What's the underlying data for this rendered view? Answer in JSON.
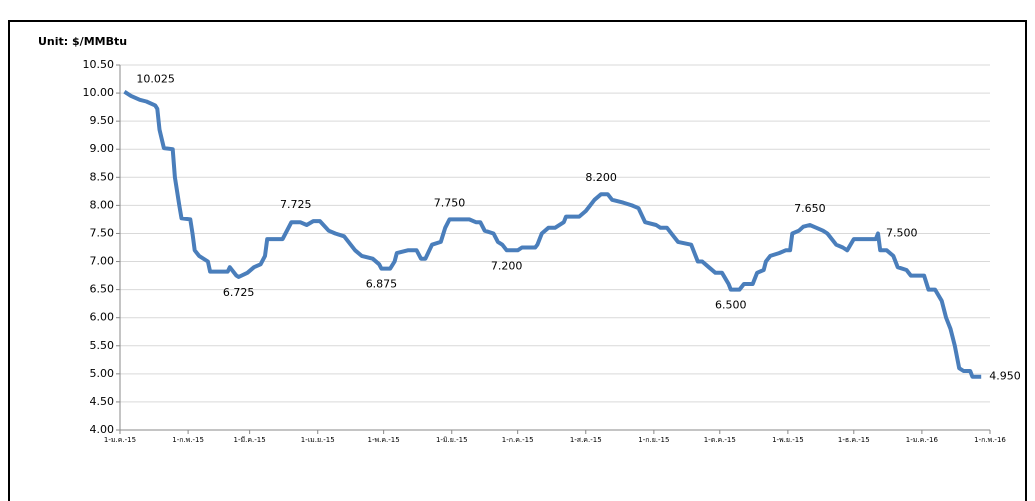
{
  "chart_data": {
    "type": "line",
    "axis_label": "Unit: $/MMBtu",
    "xlim": [
      0,
      396
    ],
    "xticks": [
      {
        "value": 0,
        "label": "1-ม.ค.-15"
      },
      {
        "value": 31,
        "label": "1-ก.พ.-15"
      },
      {
        "value": 59,
        "label": "1-มี.ค.-15"
      },
      {
        "value": 90,
        "label": "1-เม.ย.-15"
      },
      {
        "value": 120,
        "label": "1-พ.ค.-15"
      },
      {
        "value": 151,
        "label": "1-มิ.ย.-15"
      },
      {
        "value": 181,
        "label": "1-ก.ค.-15"
      },
      {
        "value": 212,
        "label": "1-ส.ค.-15"
      },
      {
        "value": 243,
        "label": "1-ก.ย.-15"
      },
      {
        "value": 273,
        "label": "1-ต.ค.-15"
      },
      {
        "value": 304,
        "label": "1-พ.ย.-15"
      },
      {
        "value": 334,
        "label": "1-ธ.ค.-15"
      },
      {
        "value": 365,
        "label": "1-ม.ค.-16"
      },
      {
        "value": 396,
        "label": "1-ก.พ.-16"
      }
    ],
    "ylim": [
      4,
      10.5
    ],
    "yticks": [
      {
        "value": 4,
        "label": "4.00"
      },
      {
        "value": 4.5,
        "label": "4.50"
      },
      {
        "value": 5,
        "label": "5.00"
      },
      {
        "value": 5.5,
        "label": "5.50"
      },
      {
        "value": 6,
        "label": "6.00"
      },
      {
        "value": 6.5,
        "label": "6.50"
      },
      {
        "value": 7,
        "label": "7.00"
      },
      {
        "value": 7.5,
        "label": "7.50"
      },
      {
        "value": 8,
        "label": "8.00"
      },
      {
        "value": 8.5,
        "label": "8.50"
      },
      {
        "value": 9,
        "label": "9.00"
      },
      {
        "value": 9.5,
        "label": "9.50"
      },
      {
        "value": 10,
        "label": "10.00"
      },
      {
        "value": 10.5,
        "label": "10.50"
      }
    ],
    "grid": true,
    "series": [
      {
        "color": "#4a7ebb",
        "x": [
          2,
          5,
          9,
          12,
          16,
          17,
          18,
          20,
          24,
          25,
          27,
          28,
          32,
          33,
          34,
          36,
          40,
          41,
          49,
          50,
          53,
          54,
          58,
          61,
          64,
          66,
          67,
          74,
          78,
          82,
          85,
          88,
          91,
          95,
          98,
          102,
          105,
          107,
          110,
          115,
          118,
          119,
          123,
          125,
          126,
          131,
          135,
          137,
          139,
          142,
          146,
          148,
          150,
          159,
          162,
          164,
          166,
          170,
          172,
          174,
          176,
          181,
          183,
          189,
          190,
          192,
          195,
          198,
          202,
          203,
          209,
          212,
          214,
          216,
          219,
          222,
          224,
          229,
          233,
          236,
          239,
          244,
          246,
          249,
          252,
          254,
          260,
          262,
          263,
          265,
          268,
          271,
          274,
          277,
          278,
          282,
          284,
          288,
          290,
          293,
          294,
          296,
          300,
          303,
          305,
          306,
          309,
          311,
          314,
          317,
          320,
          322,
          326,
          329,
          331,
          334,
          344,
          345,
          346,
          349,
          352,
          354,
          358,
          360,
          366,
          368,
          371,
          374,
          376,
          378,
          380,
          382,
          384,
          387,
          388,
          392
        ],
        "values": [
          10.025,
          9.95,
          9.88,
          9.85,
          9.78,
          9.72,
          9.35,
          9.02,
          9.0,
          8.5,
          8.0,
          7.77,
          7.75,
          7.5,
          7.2,
          7.1,
          7.0,
          6.82,
          6.82,
          6.9,
          6.75,
          6.725,
          6.8,
          6.9,
          6.95,
          7.1,
          7.4,
          7.4,
          7.7,
          7.7,
          7.65,
          7.72,
          7.72,
          7.55,
          7.5,
          7.45,
          7.3,
          7.2,
          7.1,
          7.05,
          6.95,
          6.875,
          6.875,
          7.0,
          7.15,
          7.2,
          7.2,
          7.05,
          7.05,
          7.3,
          7.35,
          7.6,
          7.75,
          7.75,
          7.7,
          7.7,
          7.55,
          7.5,
          7.35,
          7.3,
          7.2,
          7.2,
          7.25,
          7.25,
          7.3,
          7.5,
          7.6,
          7.6,
          7.7,
          7.8,
          7.8,
          7.9,
          8.0,
          8.1,
          8.2,
          8.2,
          8.1,
          8.05,
          8.0,
          7.95,
          7.7,
          7.65,
          7.6,
          7.6,
          7.45,
          7.35,
          7.3,
          7.1,
          7.0,
          7.0,
          6.9,
          6.8,
          6.8,
          6.6,
          6.5,
          6.5,
          6.6,
          6.6,
          6.8,
          6.85,
          7.0,
          7.1,
          7.15,
          7.2,
          7.2,
          7.5,
          7.55,
          7.62,
          7.65,
          7.6,
          7.55,
          7.5,
          7.3,
          7.25,
          7.2,
          7.4,
          7.4,
          7.5,
          7.2,
          7.2,
          7.1,
          6.9,
          6.85,
          6.75,
          6.75,
          6.5,
          6.5,
          6.3,
          6.0,
          5.8,
          5.5,
          5.1,
          5.05,
          5.05,
          4.95,
          4.95
        ]
      }
    ],
    "annotations": [
      {
        "label": "10.025",
        "x": 2,
        "y": 10.025
      },
      {
        "label": "6.725",
        "x": 54,
        "y": 6.725
      },
      {
        "label": "7.725",
        "x": 80,
        "y": 7.725
      },
      {
        "label": "6.875",
        "x": 119,
        "y": 6.875
      },
      {
        "label": "7.750",
        "x": 150,
        "y": 7.75
      },
      {
        "label": "7.200",
        "x": 176,
        "y": 7.2
      },
      {
        "label": "8.200",
        "x": 219,
        "y": 8.2
      },
      {
        "label": "6.500",
        "x": 278,
        "y": 6.5
      },
      {
        "label": "7.650",
        "x": 314,
        "y": 7.65
      },
      {
        "label": "7.500",
        "x": 345,
        "y": 7.5
      },
      {
        "label": "4.950",
        "x": 392,
        "y": 4.95
      }
    ]
  }
}
